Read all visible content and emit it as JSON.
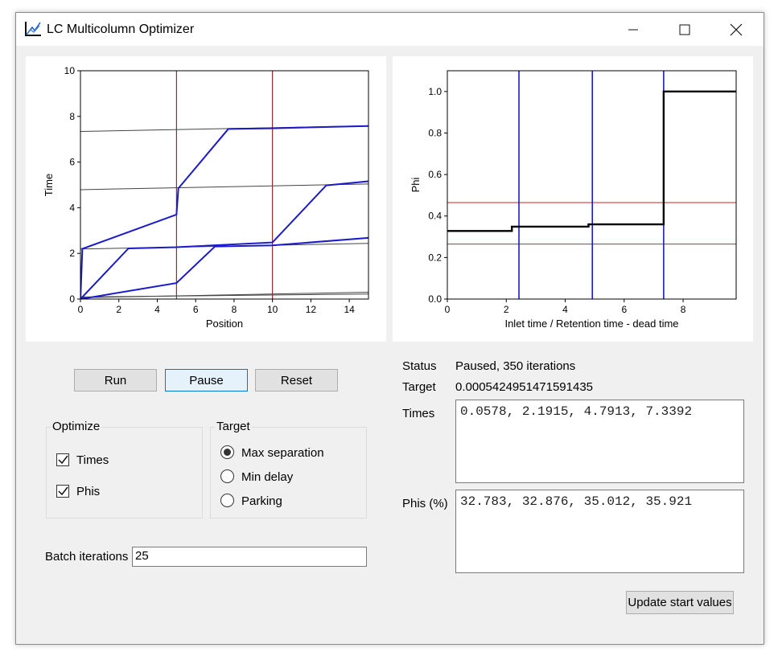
{
  "window": {
    "title": "LC Multicolumn Optimizer"
  },
  "titlebar_controls": {
    "minimize": "—",
    "maximize": "☐",
    "close": "✕"
  },
  "controls": {
    "run": "Run",
    "pause": "Pause",
    "reset": "Reset"
  },
  "optimize": {
    "title": "Optimize",
    "times": {
      "label": "Times",
      "checked": true
    },
    "phis": {
      "label": "Phis",
      "checked": true
    }
  },
  "target_group": {
    "title": "Target",
    "options": [
      {
        "label": "Max separation",
        "selected": true
      },
      {
        "label": "Min delay",
        "selected": false
      },
      {
        "label": "Parking",
        "selected": false
      }
    ]
  },
  "batch": {
    "label": "Batch iterations",
    "value": "25"
  },
  "status": {
    "status_label": "Status",
    "status_value": "Paused, 350 iterations",
    "target_label": "Target",
    "target_value": "0.0005424951471591435",
    "times_label": "Times",
    "times_value": "0.0578, 2.1915, 4.7913, 7.3392",
    "phis_label": "Phis (%)",
    "phis_value": "32.783, 32.876, 35.012, 35.921"
  },
  "update_button": "Update start values",
  "chart_data": [
    {
      "type": "line",
      "title": "",
      "xlabel": "Position",
      "ylabel": "Time",
      "xlim": [
        0,
        15
      ],
      "ylim": [
        0,
        10
      ],
      "xticks": [
        "0",
        "2",
        "4",
        "6",
        "8",
        "10",
        "12",
        "14"
      ],
      "yticks": [
        "0",
        "2",
        "4",
        "6",
        "8",
        "10"
      ],
      "colors": {
        "series": "#1a1acc",
        "reference": "#444444",
        "markers": "#8b0000"
      },
      "vlines": [
        5,
        10
      ],
      "reference_lines": [
        {
          "x": [
            0,
            15
          ],
          "y": [
            0.06,
            0.3
          ]
        },
        {
          "x": [
            0,
            15
          ],
          "y": [
            0.09,
            0.22
          ]
        },
        {
          "x": [
            0,
            15
          ],
          "y": [
            2.19,
            2.44
          ]
        },
        {
          "x": [
            0,
            15
          ],
          "y": [
            4.79,
            5.04
          ]
        },
        {
          "x": [
            0,
            15
          ],
          "y": [
            7.34,
            7.59
          ]
        }
      ],
      "series": [
        {
          "x": [
            0,
            0.1,
            5,
            5.1,
            7.7,
            10,
            15
          ],
          "y": [
            0,
            2.2,
            3.7,
            4.85,
            7.45,
            7.48,
            7.58
          ]
        },
        {
          "x": [
            0,
            2.5,
            5,
            10,
            12.8,
            15
          ],
          "y": [
            0,
            2.22,
            2.27,
            2.48,
            4.98,
            5.16
          ]
        },
        {
          "x": [
            0,
            5,
            7,
            10,
            15
          ],
          "y": [
            0,
            0.7,
            2.3,
            2.35,
            2.68
          ]
        }
      ]
    },
    {
      "type": "line",
      "title": "",
      "xlabel": "Inlet time / Retention time - dead time",
      "ylabel": "Phi",
      "xlim": [
        0,
        9.8
      ],
      "ylim": [
        0,
        1.1
      ],
      "xticks": [
        "0",
        "2",
        "4",
        "6",
        "8"
      ],
      "yticks": [
        "0.0",
        "0.2",
        "0.4",
        "0.6",
        "0.8",
        "1.0"
      ],
      "colors": {
        "step": "#000000",
        "vlines": "#1a1acc",
        "hlines": "#cc2222"
      },
      "vlines": [
        2.43,
        4.92,
        7.34
      ],
      "hlines": [
        0.265,
        0.465
      ],
      "step": {
        "x": [
          0,
          2.19,
          2.19,
          4.79,
          4.79,
          7.34,
          7.34,
          9.8
        ],
        "y": [
          0.328,
          0.328,
          0.349,
          0.349,
          0.36,
          0.36,
          1.0,
          1.0
        ]
      }
    }
  ]
}
